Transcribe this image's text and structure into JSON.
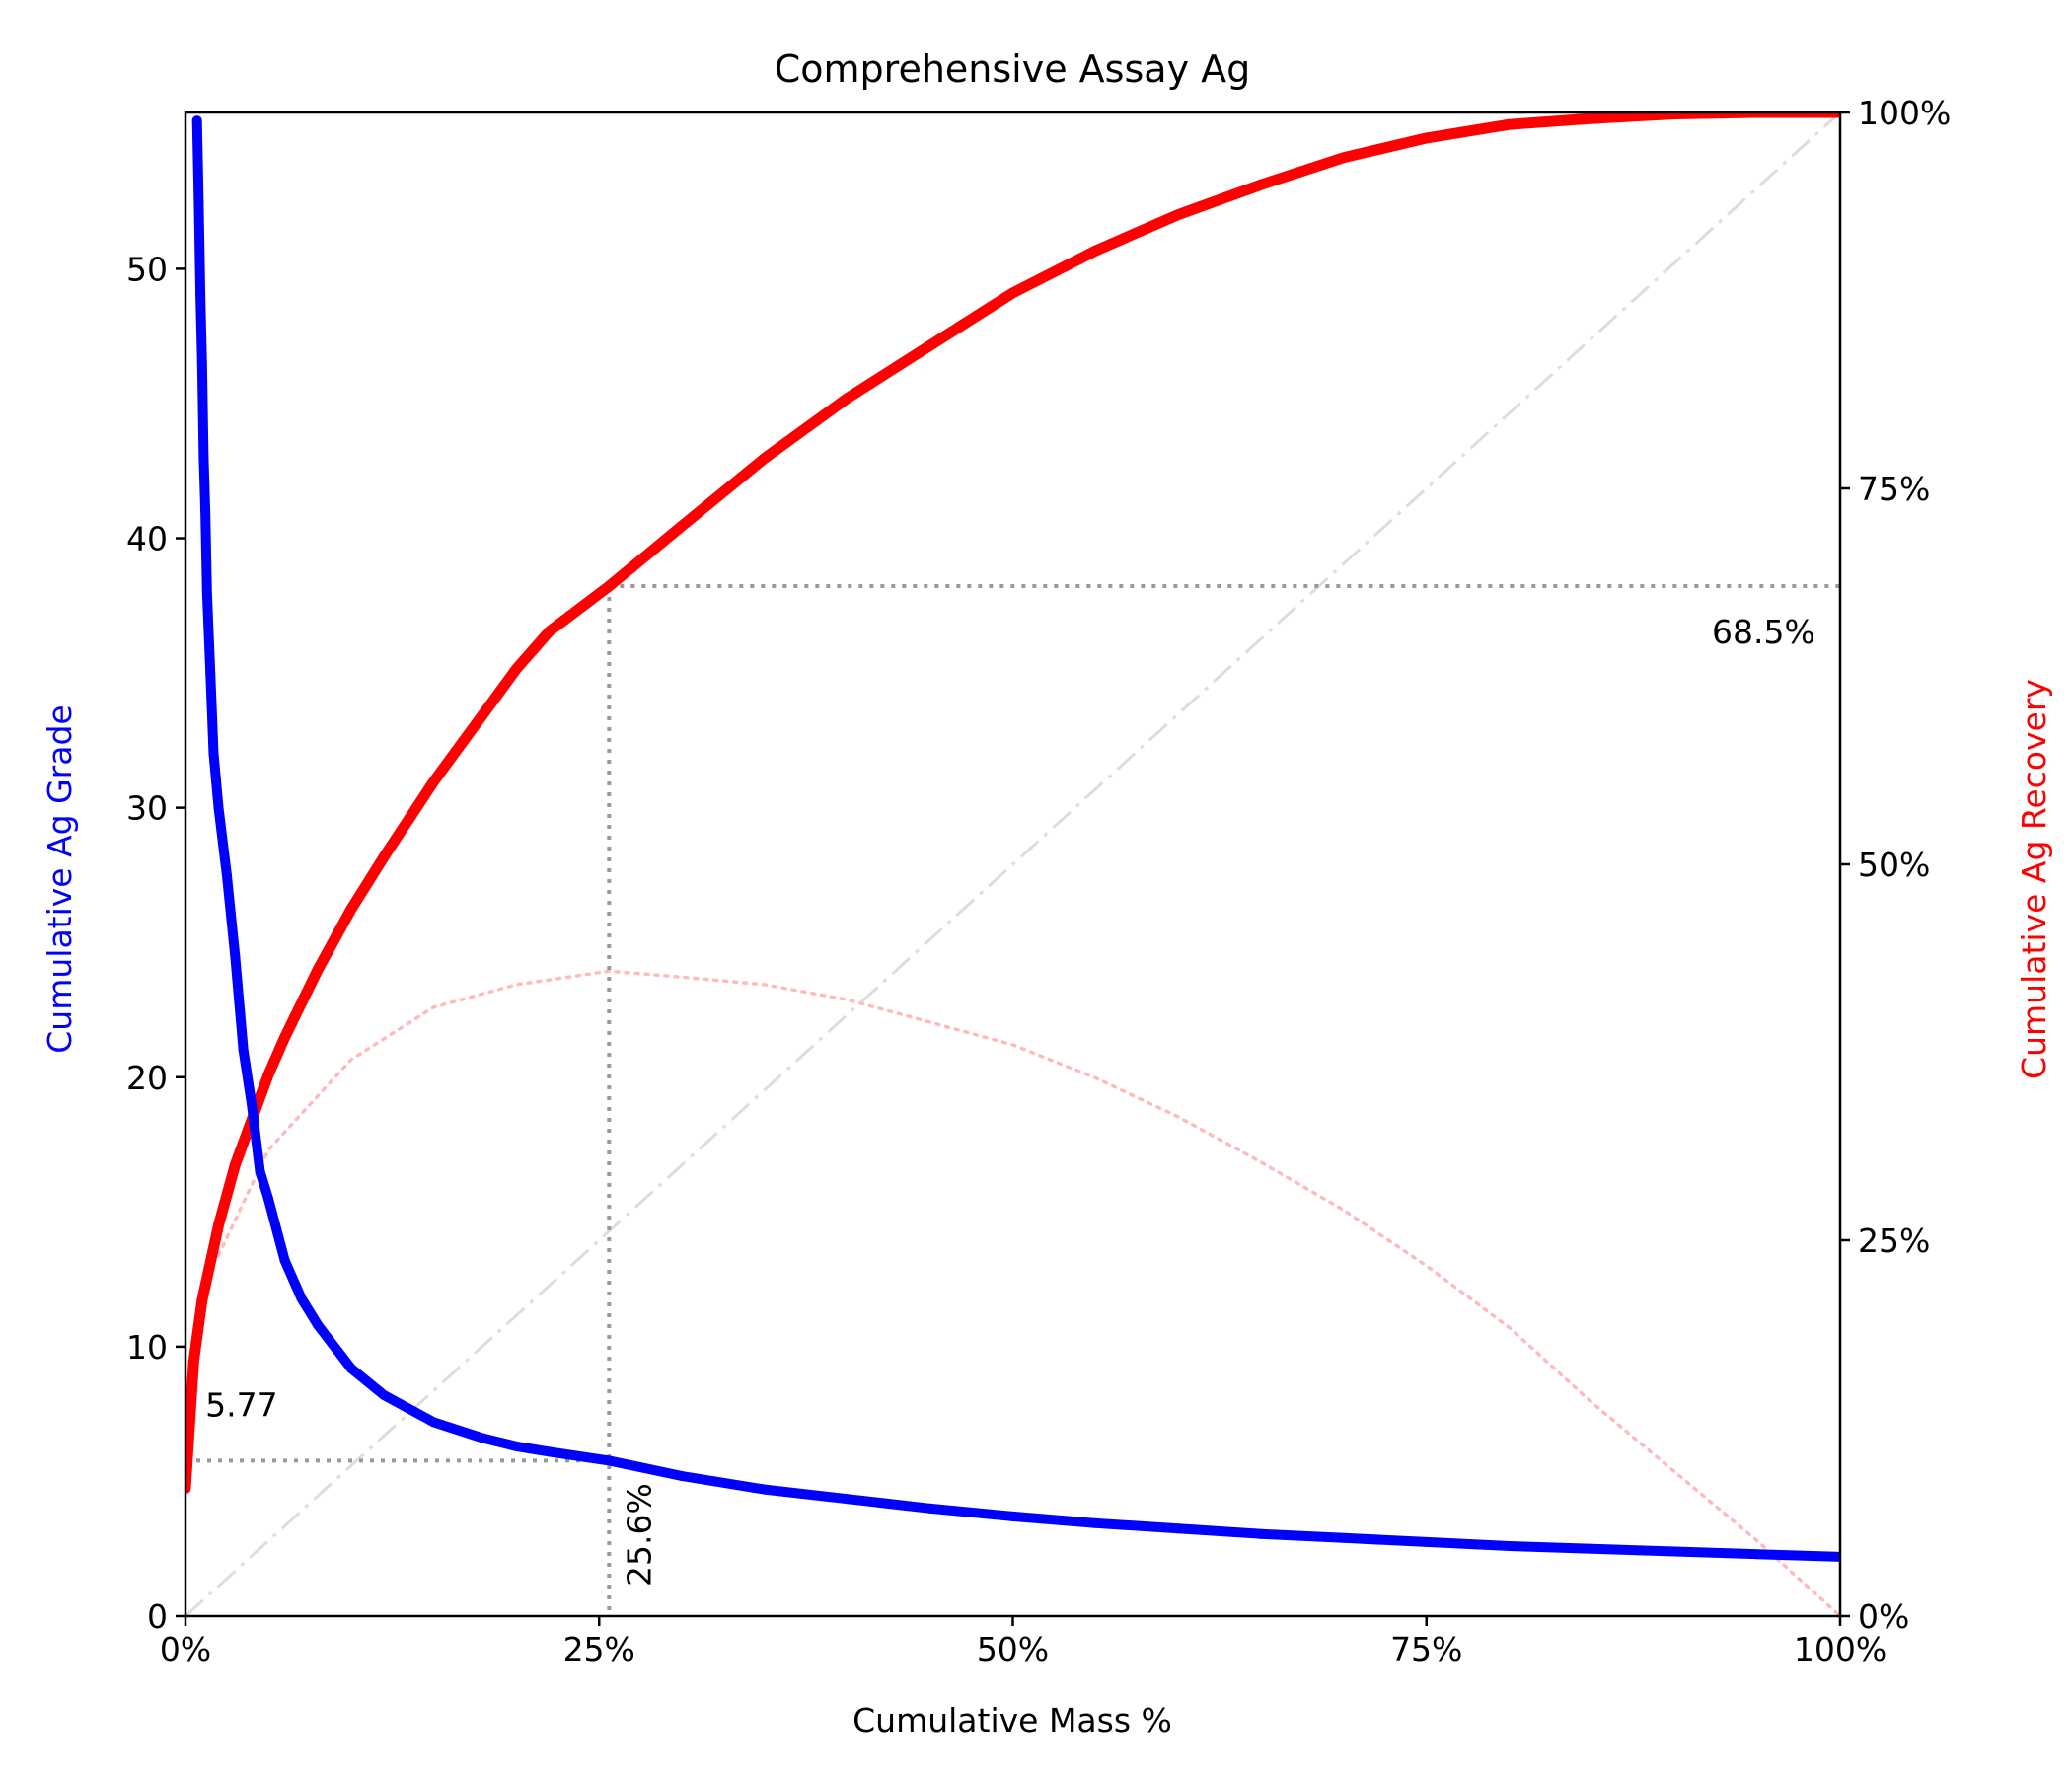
{
  "chart_data": {
    "type": "line",
    "title": "Comprehensive Assay Ag",
    "xlabel": "Cumulative Mass %",
    "ylabel_left": "Cumulative Ag Grade",
    "ylabel_right": "Cumulative Ag Recovery",
    "xlim": [
      0,
      100
    ],
    "ylim_left": [
      0,
      55.8
    ],
    "ylim_right": [
      0,
      100
    ],
    "x_ticks": [
      0,
      25,
      50,
      75,
      100
    ],
    "x_tick_labels": [
      "0%",
      "25%",
      "50%",
      "75%",
      "100%"
    ],
    "y_left_ticks": [
      0,
      10,
      20,
      30,
      40,
      50
    ],
    "y_left_tick_labels": [
      "0",
      "10",
      "20",
      "30",
      "40",
      "50"
    ],
    "y_right_ticks": [
      0,
      25,
      50,
      75,
      100
    ],
    "y_right_tick_labels": [
      "0%",
      "25%",
      "50%",
      "75%",
      "100%"
    ],
    "grid": false,
    "colors": {
      "grade": "#0000ff",
      "recovery": "#ff0000",
      "difference": "#ffbbbb",
      "diagonal": "#dddddd",
      "marker": "#999999",
      "axis": "#000000"
    },
    "series": [
      {
        "axis": "left",
        "style": "dots",
        "color": "#0000ff",
        "x": [
          0.7,
          0.8,
          0.9,
          1.0,
          1.1,
          1.2,
          1.3,
          1.5,
          1.7,
          2.0,
          2.5,
          3.0,
          3.5,
          4.0,
          4.5,
          5.0,
          6.0,
          7.0,
          8.0,
          10.0,
          12.0,
          15.0,
          18.0,
          20.0,
          22.0,
          25.6,
          30.0,
          35.0,
          40.0,
          45.0,
          50.0,
          55.0,
          60.0,
          65.0,
          70.0,
          75.0,
          80.0,
          85.0,
          90.0,
          95.0,
          100.0
        ],
        "y": [
          55.5,
          52.5,
          49.0,
          46.5,
          43.0,
          41.0,
          38.0,
          35.0,
          32.0,
          30.0,
          27.5,
          24.5,
          21.0,
          19.0,
          16.5,
          15.5,
          13.2,
          11.8,
          10.8,
          9.2,
          8.2,
          7.2,
          6.6,
          6.3,
          6.1,
          5.77,
          5.2,
          4.7,
          4.35,
          4.0,
          3.7,
          3.45,
          3.25,
          3.05,
          2.9,
          2.75,
          2.6,
          2.5,
          2.4,
          2.3,
          2.2
        ]
      },
      {
        "axis": "right",
        "style": "thick-line",
        "color": "#ff0000",
        "x": [
          0,
          0.2,
          0.5,
          1,
          2,
          3,
          4,
          5,
          6,
          8,
          10,
          12,
          15,
          18,
          20,
          22,
          25.6,
          30,
          35,
          40,
          45,
          50,
          55,
          60,
          65,
          70,
          75,
          80,
          85,
          90,
          95,
          100
        ],
        "y": [
          8.5,
          12,
          17,
          21,
          26,
          30,
          33,
          36,
          38.5,
          43,
          47,
          50.5,
          55.5,
          60,
          63,
          65.5,
          68.5,
          72.5,
          77,
          81,
          84.5,
          88,
          90.8,
          93.2,
          95.2,
          97,
          98.3,
          99.2,
          99.6,
          99.9,
          100,
          100
        ]
      },
      {
        "axis": "right",
        "style": "dotted",
        "color": "#ffbbbb",
        "x": [
          2,
          5,
          10,
          15,
          20,
          25.6,
          30,
          35,
          40,
          45,
          50,
          55,
          60,
          65,
          70,
          75,
          80,
          85,
          90,
          95,
          100
        ],
        "y": [
          24,
          31,
          37,
          40.5,
          42,
          42.9,
          42.5,
          42,
          41,
          39.5,
          38,
          35.8,
          33.2,
          30.2,
          27,
          23.3,
          19.2,
          14.2,
          9.6,
          5,
          0
        ]
      },
      {
        "axis": "right",
        "style": "dashdot",
        "color": "#dddddd",
        "x": [
          0,
          100
        ],
        "y": [
          0,
          100
        ]
      }
    ],
    "annotations": [
      {
        "text": "68.5%",
        "x": 98.5,
        "y_right": 68.5,
        "position": "below-left"
      },
      {
        "text": "5.77",
        "x": 1.2,
        "y_left": 5.77,
        "position": "above"
      },
      {
        "text": "25.6%",
        "x": 25.6,
        "y_left": 0,
        "position": "right-rotated"
      }
    ],
    "markers": {
      "cutoff_mass": 25.6,
      "cutoff_recovery": 68.5,
      "cutoff_grade": 5.77
    }
  }
}
